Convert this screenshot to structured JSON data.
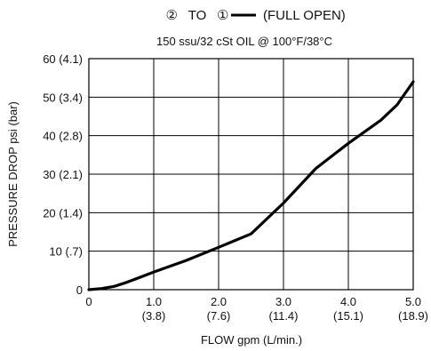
{
  "chart_data": {
    "type": "line",
    "title": {
      "from_port": "②",
      "to_word": "TO",
      "to_port": "①",
      "condition": "(FULL OPEN)"
    },
    "subtitle": "150 ssu/32 cSt OIL @ 100°F/38°C",
    "xlabel": "FLOW gpm (L/min.)",
    "ylabel": "PRESSURE DROP psi (bar)",
    "xlim": [
      0,
      5
    ],
    "ylim": [
      0,
      60
    ],
    "grid": true,
    "x_ticks": [
      {
        "value": 0,
        "label": "0",
        "sub": ""
      },
      {
        "value": 1,
        "label": "1.0",
        "sub": "(3.8)"
      },
      {
        "value": 2,
        "label": "2.0",
        "sub": "(7.6)"
      },
      {
        "value": 3,
        "label": "3.0",
        "sub": "(11.4)"
      },
      {
        "value": 4,
        "label": "4.0",
        "sub": "(15.1)"
      },
      {
        "value": 5,
        "label": "5.0",
        "sub": "(18.9)"
      }
    ],
    "y_ticks": [
      {
        "value": 0,
        "label": "0"
      },
      {
        "value": 10,
        "label": "10 (.7)"
      },
      {
        "value": 20,
        "label": "20 (1.4)"
      },
      {
        "value": 30,
        "label": "30 (2.1)"
      },
      {
        "value": 40,
        "label": "40 (2.8)"
      },
      {
        "value": 50,
        "label": "50 (3.4)"
      },
      {
        "value": 60,
        "label": "60 (4.1)"
      }
    ],
    "series": [
      {
        "color": "#000000",
        "x": [
          0,
          0.2,
          0.4,
          0.6,
          0.8,
          1.0,
          1.5,
          2.0,
          2.5,
          3.0,
          3.5,
          4.0,
          4.5,
          4.75,
          5.0
        ],
        "y": [
          0,
          0.3,
          0.9,
          2.0,
          3.3,
          4.6,
          7.6,
          11.0,
          14.5,
          22.5,
          31.5,
          38.0,
          44.0,
          48.0,
          54.0
        ]
      }
    ]
  }
}
